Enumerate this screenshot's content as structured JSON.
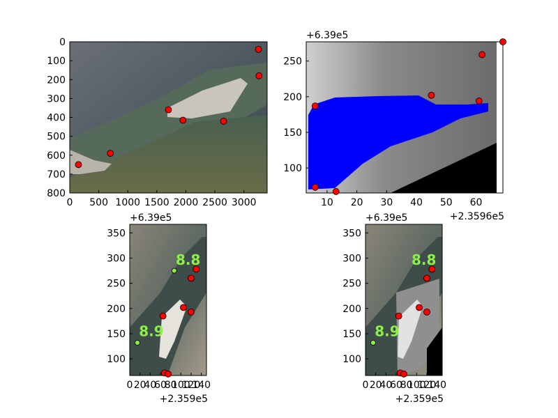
{
  "chart_data": [
    {
      "type": "image_scatter",
      "image": "rgb-river-photo",
      "xlim": [
        0,
        3400
      ],
      "ylim": [
        800,
        0
      ],
      "xticks": [
        "0",
        "500",
        "1000",
        "1500",
        "2000",
        "2500",
        "3000"
      ],
      "yticks": [
        "0",
        "100",
        "200",
        "300",
        "400",
        "500",
        "600",
        "700",
        "800"
      ],
      "points": [
        [
          3250,
          40
        ],
        [
          3260,
          180
        ],
        [
          1700,
          360
        ],
        [
          1950,
          415
        ],
        [
          2650,
          420
        ],
        [
          700,
          590
        ],
        [
          150,
          650
        ]
      ],
      "point_color": "#ff0000"
    },
    {
      "type": "image_scatter",
      "image": "grayscale-dem-with-water-mask",
      "xlim": [
        3,
        69
      ],
      "ylim": [
        65,
        277
      ],
      "xticks": [
        "10",
        "20",
        "30",
        "40",
        "50",
        "60"
      ],
      "yticks": [
        "100",
        "150",
        "200",
        "250"
      ],
      "x_offset_label": "+2.3596e5",
      "y_offset_label": "+6.39e5",
      "points": [
        [
          6,
          187
        ],
        [
          45,
          202
        ],
        [
          61,
          194
        ],
        [
          62,
          259
        ],
        [
          69,
          277
        ],
        [
          6,
          73
        ],
        [
          13,
          67
        ]
      ],
      "mask_color": "#0000ff",
      "point_color": "#ff0000"
    },
    {
      "type": "image_scatter",
      "image": "rgb-orthophoto",
      "xlim": [
        0,
        150
      ],
      "ylim": [
        67,
        367
      ],
      "xticks": [
        "0",
        "20",
        "40",
        "60",
        "80",
        "100",
        "120",
        "140"
      ],
      "yticks": [
        "100",
        "150",
        "200",
        "250",
        "300",
        "350"
      ],
      "x_offset_label": "+2.359e5",
      "y_offset_label": "+6.39e5",
      "red_points": [
        [
          65,
          185
        ],
        [
          105,
          202
        ],
        [
          120,
          193
        ],
        [
          120,
          260
        ],
        [
          130,
          278
        ],
        [
          68,
          72
        ],
        [
          75,
          70
        ]
      ],
      "green_points": [
        [
          87,
          275
        ],
        [
          15,
          132
        ]
      ],
      "labels": [
        {
          "text": "8.8",
          "x": 90,
          "y": 287
        },
        {
          "text": "8.9",
          "x": 18,
          "y": 145
        }
      ],
      "point_color": "#ff0000",
      "green_color": "#8cf049"
    },
    {
      "type": "image_scatter",
      "image": "rgb-orthophoto-with-dem-overlay",
      "xlim": [
        0,
        150
      ],
      "ylim": [
        67,
        367
      ],
      "xticks": [
        "0",
        "20",
        "40",
        "60",
        "80",
        "100",
        "120",
        "140"
      ],
      "yticks": [
        "100",
        "150",
        "200",
        "250",
        "300",
        "350"
      ],
      "x_offset_label": "+2.359e5",
      "y_offset_label": "+6.39e5",
      "red_points": [
        [
          65,
          185
        ],
        [
          105,
          202
        ],
        [
          120,
          193
        ],
        [
          120,
          260
        ],
        [
          130,
          278
        ],
        [
          68,
          72
        ],
        [
          75,
          70
        ]
      ],
      "green_points": [
        [
          15,
          132
        ]
      ],
      "labels": [
        {
          "text": "8.8",
          "x": 90,
          "y": 287
        },
        {
          "text": "8.9",
          "x": 18,
          "y": 145
        }
      ],
      "point_color": "#ff0000",
      "green_color": "#8cf049"
    }
  ]
}
